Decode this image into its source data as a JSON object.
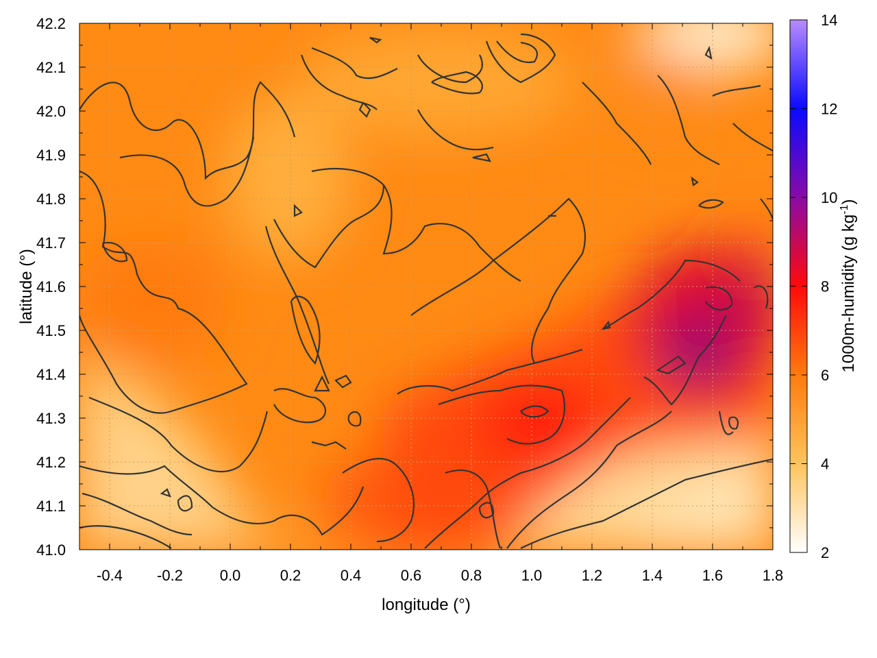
{
  "chart_data": {
    "type": "heatmap",
    "xlabel": "longitude (°)",
    "ylabel": "latitude (°)",
    "colorbar_label": "1000m-humidity (g kg",
    "colorbar_label_sup": "-1",
    "colorbar_label_close": ")",
    "xlim": [
      -0.5,
      1.8
    ],
    "ylim": [
      41.0,
      42.2
    ],
    "x_ticks": [
      "-0.4",
      "-0.2",
      "0.0",
      "0.2",
      "0.4",
      "0.6",
      "0.8",
      "1.0",
      "1.2",
      "1.4",
      "1.6",
      "1.8"
    ],
    "x_tick_values": [
      -0.4,
      -0.2,
      0.0,
      0.2,
      0.4,
      0.6,
      0.8,
      1.0,
      1.2,
      1.4,
      1.6,
      1.8
    ],
    "y_ticks": [
      "41.0",
      "41.1",
      "41.2",
      "41.3",
      "41.4",
      "41.5",
      "41.6",
      "41.7",
      "41.8",
      "41.9",
      "42.0",
      "42.1",
      "42.2"
    ],
    "y_tick_values": [
      41.0,
      41.1,
      41.2,
      41.3,
      41.4,
      41.5,
      41.6,
      41.7,
      41.8,
      41.9,
      42.0,
      42.1,
      42.2
    ],
    "colorbar_range": [
      2,
      14
    ],
    "colorbar_ticks": [
      "2",
      "4",
      "6",
      "8",
      "10",
      "12",
      "14"
    ],
    "colorbar_tick_values": [
      2,
      4,
      6,
      8,
      10,
      12,
      14
    ],
    "colorscale": [
      {
        "value": 2,
        "color": "#ffffff"
      },
      {
        "value": 4,
        "color": "#ffc45c"
      },
      {
        "value": 6,
        "color": "#ff7b0e"
      },
      {
        "value": 8,
        "color": "#ff0a0a"
      },
      {
        "value": 10,
        "color": "#8a0aa8"
      },
      {
        "value": 12,
        "color": "#0a0aff"
      },
      {
        "value": 14,
        "color": "#b88cff"
      }
    ],
    "contours": "black iso-lines overlaid",
    "grid": true,
    "field_approx": [
      {
        "lon": -0.5,
        "lat": 41.05,
        "value": 4.0
      },
      {
        "lon": 0.0,
        "lat": 41.2,
        "value": 3.6
      },
      {
        "lon": -0.3,
        "lat": 41.6,
        "value": 5.8
      },
      {
        "lon": 0.2,
        "lat": 41.9,
        "value": 5.0
      },
      {
        "lon": 0.9,
        "lat": 41.85,
        "value": 5.6
      },
      {
        "lon": 1.0,
        "lat": 41.3,
        "value": 7.6
      },
      {
        "lon": 1.5,
        "lat": 41.45,
        "value": 9.0
      },
      {
        "lon": 1.6,
        "lat": 42.15,
        "value": 3.0
      },
      {
        "lon": 1.5,
        "lat": 41.05,
        "value": 3.2
      }
    ]
  }
}
